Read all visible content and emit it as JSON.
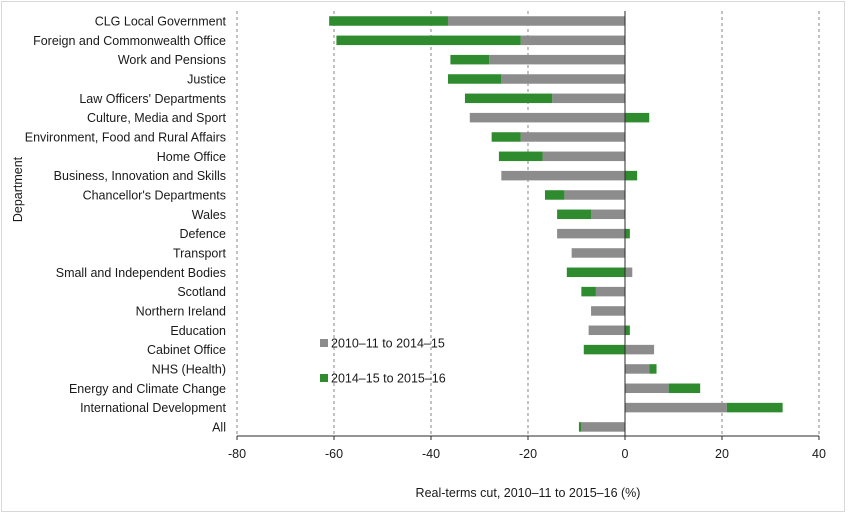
{
  "chart_data": {
    "type": "bar",
    "orientation": "horizontal",
    "stacked": true,
    "xlabel": "Real-terms cut, 2010–11 to 2015–16 (%)",
    "ylabel": "Department",
    "xlim": [
      -80,
      40
    ],
    "xticks": [
      -80,
      -60,
      -40,
      -20,
      0,
      20,
      40
    ],
    "grid": "vertical-dashed",
    "legend_position": "lower-center",
    "categories": [
      "CLG Local Government",
      "Foreign and Commonwealth Office",
      "Work and Pensions",
      "Justice",
      "Law Officers' Departments",
      "Culture, Media and Sport",
      "Environment, Food and Rural Affairs",
      "Home Office",
      "Business, Innovation and Skills",
      "Chancellor's Departments",
      "Wales",
      "Defence",
      "Transport",
      "Small and Independent Bodies",
      "Scotland",
      "Northern Ireland",
      "Education",
      "Cabinet Office",
      "NHS (Health)",
      "Energy and Climate Change",
      "International Development",
      "All"
    ],
    "series": [
      {
        "name": "2010–11 to 2014–15",
        "color": "#8c8c8c",
        "values": [
          -36.5,
          -21.5,
          -28,
          -25.5,
          -15,
          -32,
          -21.5,
          -17,
          -25.5,
          -12.5,
          -7,
          -14,
          -11,
          1.5,
          -6,
          -7,
          -7.5,
          6,
          5,
          9,
          21,
          -9
        ]
      },
      {
        "name": "2014–15 to 2015–16",
        "color": "#2e8b2e",
        "values": [
          -24.5,
          -38,
          -8,
          -11,
          -18,
          5,
          -6,
          -9,
          2.5,
          -4,
          -7,
          1,
          0,
          -12,
          -3,
          0,
          1,
          -8.5,
          1.5,
          6.5,
          11.5,
          -0.5
        ]
      }
    ]
  }
}
